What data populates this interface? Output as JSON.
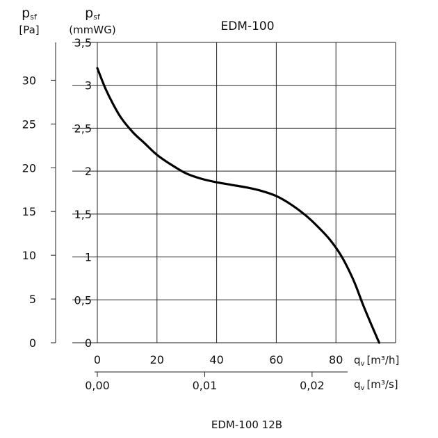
{
  "chart_data": {
    "type": "line",
    "title": "EDM-100",
    "caption": "EDM-100 12B",
    "axes": {
      "y_pa": {
        "symbol": "p",
        "subscript": "sf",
        "unit": "[Pa]",
        "ticks": [
          "0",
          "5",
          "10",
          "15",
          "20",
          "25",
          "30"
        ],
        "tick_values": [
          0,
          5,
          10,
          15,
          20,
          25,
          30
        ]
      },
      "y_mmwg": {
        "symbol": "p",
        "subscript": "sf",
        "unit": "(mmWG)",
        "ticks": [
          "0",
          "0,5",
          "1",
          "1,5",
          "2",
          "2,5",
          "3",
          "3,5"
        ],
        "tick_values": [
          0,
          0.5,
          1,
          1.5,
          2,
          2.5,
          3,
          3.5
        ],
        "ylim": [
          0,
          3.5
        ]
      },
      "x_m3h": {
        "symbol": "q",
        "subscript": "v",
        "unit": "[m³/h]",
        "ticks": [
          "0",
          "20",
          "40",
          "60",
          "80"
        ],
        "tick_values": [
          0,
          20,
          40,
          60,
          80
        ],
        "xlim": [
          0,
          100
        ]
      },
      "x_m3s": {
        "symbol": "q",
        "subscript": "v",
        "unit": "[m³/s]",
        "ticks": [
          "0,00",
          "0,01",
          "0,02"
        ],
        "tick_values": [
          0,
          0.01,
          0.02
        ]
      }
    },
    "grid": true,
    "series": [
      {
        "x": [
          0,
          2.5,
          5,
          8,
          12,
          16,
          20,
          25,
          30,
          35,
          40,
          45,
          50,
          55,
          60,
          65,
          70,
          74,
          78,
          82,
          86,
          89,
          92,
          94.5
        ],
        "y": [
          3.2,
          2.98,
          2.8,
          2.62,
          2.45,
          2.32,
          2.19,
          2.07,
          1.97,
          1.91,
          1.87,
          1.84,
          1.81,
          1.77,
          1.71,
          1.61,
          1.48,
          1.35,
          1.2,
          1.0,
          0.72,
          0.45,
          0.2,
          0.0
        ]
      }
    ],
    "colors": {
      "curve": "#000000",
      "grid": "#222222",
      "text": "#111111"
    }
  }
}
